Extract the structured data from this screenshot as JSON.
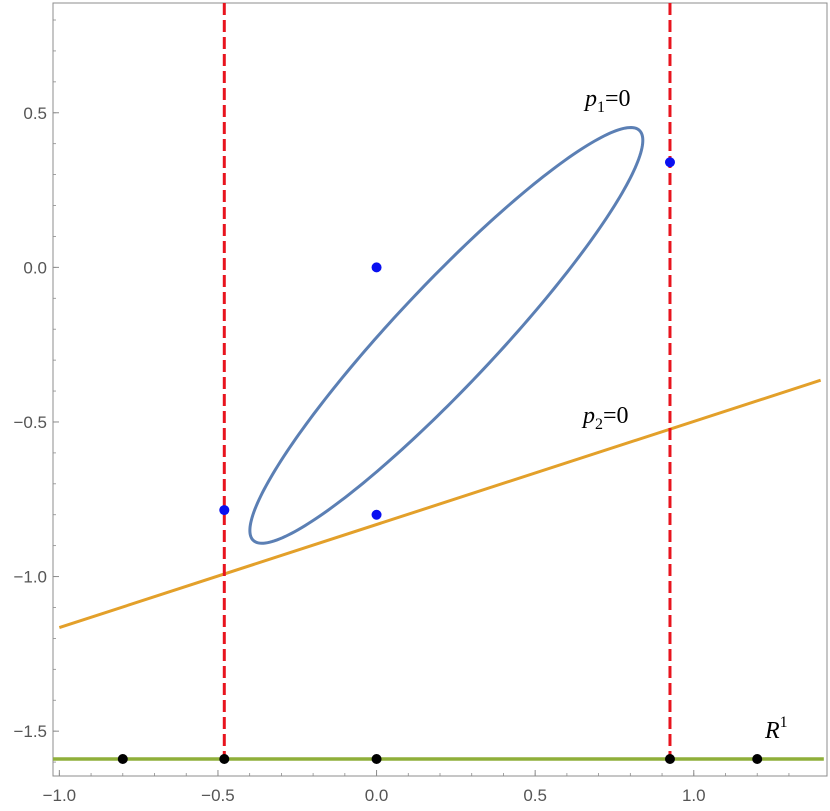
{
  "chart_data": {
    "type": "line",
    "xlim": [
      -1.02,
      1.42
    ],
    "ylim": [
      -1.645,
      0.855
    ],
    "x_ticks": [
      -1.0,
      -0.5,
      0.0,
      0.5,
      1.0
    ],
    "x_tick_labels": [
      "−1.0",
      "−0.5",
      "0.0",
      "0.5",
      "1.0"
    ],
    "y_ticks": [
      0.5,
      0.0,
      -0.5,
      -1.0,
      -1.5
    ],
    "y_tick_labels": [
      "0.5",
      "0.0",
      "−0.5",
      "−1.0",
      "−1.5"
    ],
    "grid": false,
    "colors": {
      "ellipse": "#5b7fb4",
      "line": "#e3a02a",
      "dashed": "#e8141e",
      "baseline": "#8faf3a",
      "blue_points": "#0a10f0",
      "black_points": "#000000"
    },
    "series": [
      {
        "kind": "ellipse",
        "center": [
          0.22,
          -0.22
        ],
        "semi_axes": [
          0.9,
          0.16
        ],
        "rotation_deg": 47.5,
        "label": {
          "var": "p",
          "sub": "1",
          "rest": "=0"
        }
      },
      {
        "kind": "line",
        "points": [
          [
            -1.0,
            -1.165
          ],
          [
            1.4,
            -0.365
          ]
        ],
        "label": {
          "var": "p",
          "sub": "2",
          "rest": "=0"
        }
      },
      {
        "kind": "vline-dashed",
        "x": -0.48
      },
      {
        "kind": "vline-dashed",
        "x": 0.925
      },
      {
        "kind": "hline",
        "y": -1.59,
        "x_range": [
          -1.02,
          1.41
        ],
        "label": {
          "var": "R",
          "sup": "1"
        }
      }
    ],
    "blue_points": [
      [
        0.0,
        0.0
      ],
      [
        0.0,
        -0.8
      ],
      [
        -0.48,
        -0.785
      ],
      [
        0.925,
        0.34
      ]
    ],
    "black_points": [
      [
        -0.8,
        -1.59
      ],
      [
        -0.48,
        -1.59
      ],
      [
        0.0,
        -1.59
      ],
      [
        0.925,
        -1.59
      ],
      [
        1.2,
        -1.59
      ]
    ]
  }
}
